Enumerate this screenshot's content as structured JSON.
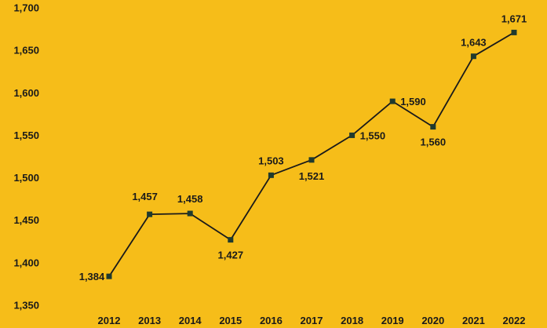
{
  "colors": {
    "background": "#F6BD19",
    "line": "#1a1a1a",
    "marker": "#1F3A2E",
    "text": "#1a1a1a"
  },
  "chart_data": {
    "type": "line",
    "title": "",
    "xlabel": "",
    "ylabel": "",
    "categories": [
      "2012",
      "2013",
      "2014",
      "2015",
      "2016",
      "2017",
      "2018",
      "2019",
      "2020",
      "2021",
      "2022"
    ],
    "series": [
      {
        "values": [
          1384,
          1457,
          1458,
          1427,
          1503,
          1521,
          1550,
          1590,
          1560,
          1643,
          1671
        ]
      }
    ],
    "data_labels": [
      "1,384",
      "1,457",
      "1,458",
      "1,427",
      "1,503",
      "1,521",
      "1,550",
      "1,590",
      "1,560",
      "1,643",
      "1,671"
    ],
    "ylim": [
      1350,
      1700
    ],
    "yticks": [
      1350,
      1400,
      1450,
      1500,
      1550,
      1600,
      1650,
      1700
    ],
    "ytick_labels": [
      "1,350",
      "1,400",
      "1,450",
      "1,500",
      "1,550",
      "1,600",
      "1,650",
      "1,700"
    ],
    "grid": false,
    "legend": "none",
    "marker": "square"
  }
}
